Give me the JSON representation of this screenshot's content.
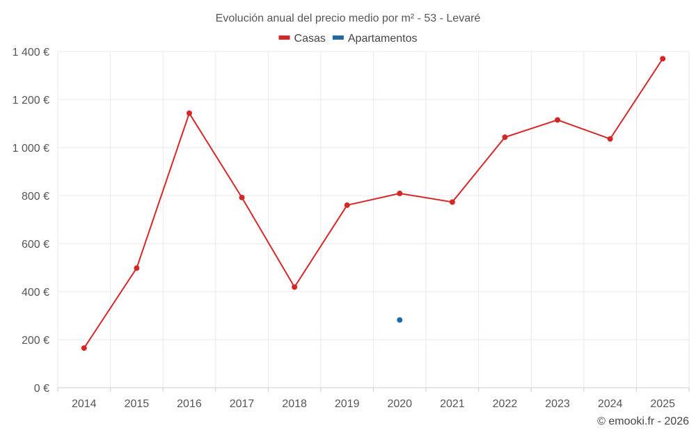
{
  "chart_data": {
    "type": "line",
    "title": "Evolución anual del precio medio por m² - 53 - Levaré",
    "categories": [
      "2014",
      "2015",
      "2016",
      "2017",
      "2018",
      "2019",
      "2020",
      "2021",
      "2022",
      "2023",
      "2024",
      "2025"
    ],
    "series": [
      {
        "name": "Casas",
        "color": "#d62728",
        "values": [
          165,
          498,
          1143,
          792,
          419,
          760,
          809,
          773,
          1043,
          1115,
          1036,
          1370
        ]
      },
      {
        "name": "Apartamentos",
        "color": "#1f6aa5",
        "values": [
          null,
          null,
          null,
          null,
          null,
          null,
          282,
          null,
          null,
          null,
          null,
          null
        ]
      }
    ],
    "y_ticks": [
      0,
      200,
      400,
      600,
      800,
      1000,
      1200,
      1400
    ],
    "y_tick_labels": [
      "0 €",
      "200 €",
      "400 €",
      "600 €",
      "800 €",
      "1 000 €",
      "1 200 €",
      "1 400 €"
    ],
    "ylim": [
      0,
      1400
    ],
    "xlabel": "",
    "ylabel": "",
    "grid": true,
    "legend_position": "top-center"
  },
  "credit": "© emooki.fr - 2026"
}
